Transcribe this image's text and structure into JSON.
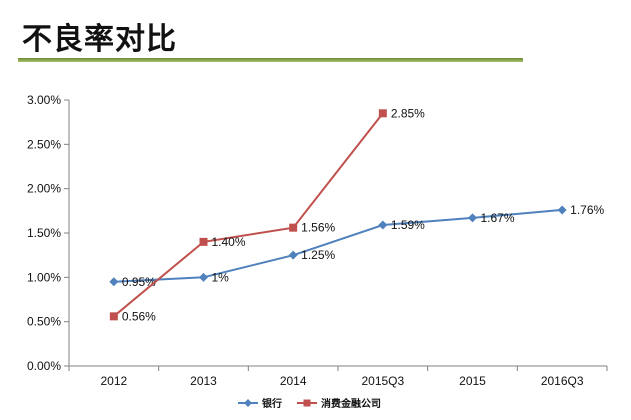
{
  "header": {
    "title": "不良率对比"
  },
  "chart_data": {
    "type": "line",
    "title": "",
    "xlabel": "",
    "ylabel": "",
    "categories": [
      "2012",
      "2013",
      "2014",
      "2015Q3",
      "2015",
      "2016Q3"
    ],
    "ylim": [
      0,
      3.0
    ],
    "yticks": [
      "0.00%",
      "0.50%",
      "1.00%",
      "1.50%",
      "2.00%",
      "2.50%",
      "3.00%"
    ],
    "grid": false,
    "legend_position": "bottom",
    "series": [
      {
        "name": "银行",
        "color": "#4f81bd",
        "marker": "diamond",
        "values": [
          0.95,
          1.0,
          1.25,
          1.59,
          1.67,
          1.76
        ],
        "labels": [
          "0.95%",
          "1%",
          "1.25%",
          "1.59%",
          "1.67%",
          "1.76%"
        ]
      },
      {
        "name": "消费金融公司",
        "color": "#c0504d",
        "marker": "square",
        "values": [
          0.56,
          1.4,
          1.56,
          2.85,
          null,
          null
        ],
        "labels": [
          "0.56%",
          "1.40%",
          "1.56%",
          "2.85%",
          null,
          null
        ]
      }
    ]
  }
}
